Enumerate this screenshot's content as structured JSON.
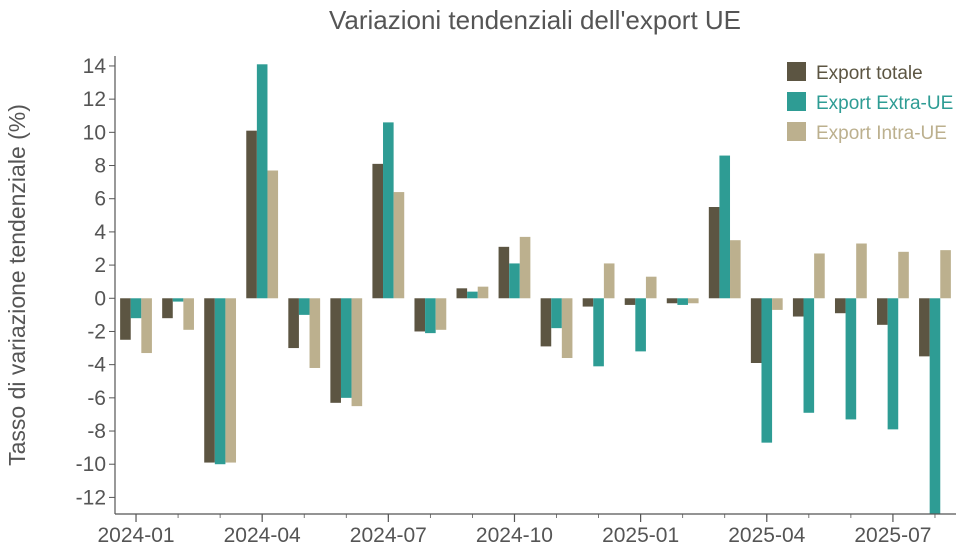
{
  "chart_data": {
    "type": "bar",
    "title": "Variazioni tendenziali dell'export UE",
    "xlabel": "",
    "ylabel": "Tasso di variazione tendenziale (%)",
    "ylim": [
      -13,
      14.6
    ],
    "yticks": [
      14,
      12,
      10,
      8,
      6,
      4,
      2,
      0,
      -2,
      -4,
      -6,
      -8,
      -10,
      -12
    ],
    "xtick_labels": [
      "2024-01",
      "2024-04",
      "2024-07",
      "2024-10",
      "2025-01",
      "2025-04",
      "2025-07"
    ],
    "xtick_positions": [
      0,
      3,
      6,
      9,
      12,
      15,
      18
    ],
    "categories": [
      "2024-01",
      "2024-02",
      "2024-03",
      "2024-04",
      "2024-05",
      "2024-06",
      "2024-07",
      "2024-08",
      "2024-09",
      "2024-10",
      "2024-11",
      "2024-12",
      "2025-01",
      "2025-02",
      "2025-03",
      "2025-04",
      "2025-05",
      "2025-06",
      "2025-07",
      "2025-08"
    ],
    "legend_position": "top-right",
    "grid": false,
    "series": [
      {
        "name": "Export totale",
        "color": "#5c5542",
        "values": [
          -2.5,
          -1.2,
          -9.9,
          10.1,
          -3.0,
          -6.3,
          8.1,
          -2.0,
          0.6,
          3.1,
          -2.9,
          -0.5,
          -0.4,
          -0.3,
          5.5,
          -3.9,
          -1.1,
          -0.9,
          -1.6,
          -3.5
        ]
      },
      {
        "name": "Export Extra-UE",
        "color": "#2e9c94",
        "values": [
          -1.2,
          -0.2,
          -10.0,
          14.1,
          -1.0,
          -6.0,
          10.6,
          -2.1,
          0.4,
          2.1,
          -1.8,
          -4.1,
          -3.2,
          -0.4,
          8.6,
          -8.7,
          -6.9,
          -7.3,
          -7.9,
          -13.0
        ]
      },
      {
        "name": "Export Intra-UE",
        "color": "#bcb08e",
        "values": [
          -3.3,
          -1.9,
          -9.9,
          7.7,
          -4.2,
          -6.5,
          6.4,
          -1.9,
          0.7,
          3.7,
          -3.6,
          2.1,
          1.3,
          -0.3,
          3.5,
          -0.7,
          2.7,
          3.3,
          2.8,
          2.9
        ]
      }
    ]
  }
}
